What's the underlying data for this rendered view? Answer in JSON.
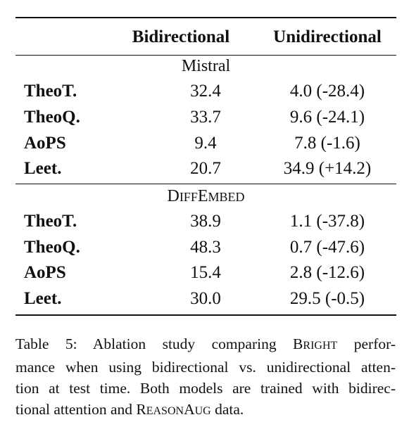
{
  "table": {
    "columns": [
      "Bidirectional",
      "Unidirectional"
    ],
    "groups": [
      {
        "name": "Mistral",
        "rows": [
          {
            "label": "TheoT.",
            "bidirectional": "32.4",
            "unidirectional": "4.0 (-28.4)"
          },
          {
            "label": "TheoQ.",
            "bidirectional": "33.7",
            "unidirectional": "9.6 (-24.1)"
          },
          {
            "label": "AoPS",
            "bidirectional": "9.4",
            "unidirectional": "7.8 (-1.6)"
          },
          {
            "label": "Leet.",
            "bidirectional": "20.7",
            "unidirectional": "34.9 (+14.2)"
          }
        ]
      },
      {
        "name_parts": {
          "D": "D",
          "iff": "IFF",
          "E": "E",
          "mbed": "MBED"
        },
        "rows": [
          {
            "label": "TheoT.",
            "bidirectional": "38.9",
            "unidirectional": "1.1 (-37.8)"
          },
          {
            "label": "TheoQ.",
            "bidirectional": "48.3",
            "unidirectional": "0.7 (-47.6)"
          },
          {
            "label": "AoPS",
            "bidirectional": "15.4",
            "unidirectional": "2.8 (-12.6)"
          },
          {
            "label": "Leet.",
            "bidirectional": "30.0",
            "unidirectional": "29.5 (-0.5)"
          }
        ]
      }
    ]
  },
  "caption": {
    "line1_a": "Table 5:  Ablation study comparing ",
    "bright_B": "B",
    "bright_rest": "RIGHT",
    "line1_b": " perfor-",
    "line2": "mance when using bidirectional vs. unidirectional atten-",
    "line3": "tion at test time. Both models are trained with bidirec-",
    "line4_a": "tional attention and ",
    "reason_R": "R",
    "reason_rest1": "EASON",
    "reason_A": "A",
    "reason_rest2": "UG",
    "line4_b": " data."
  }
}
